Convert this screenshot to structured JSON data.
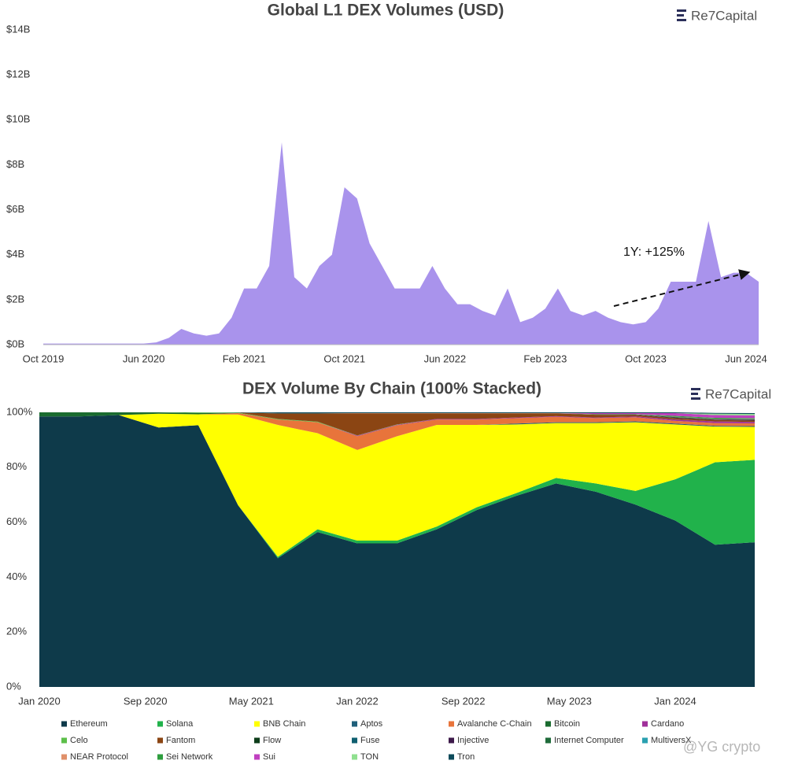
{
  "watermark": "@YG crypto",
  "chart_data": [
    {
      "type": "area",
      "title": "Global L1 DEX Volumes (USD)",
      "brand": "Re7Capital",
      "color": "#a993ec",
      "annotation": "1Y: +125%",
      "x": [
        "2019-10",
        "2019-11",
        "2019-12",
        "2020-01",
        "2020-02",
        "2020-03",
        "2020-04",
        "2020-05",
        "2020-06",
        "2020-07",
        "2020-08",
        "2020-09",
        "2020-10",
        "2020-11",
        "2020-12",
        "2021-01",
        "2021-02",
        "2021-03",
        "2021-04",
        "2021-05",
        "2021-06",
        "2021-07",
        "2021-08",
        "2021-09",
        "2021-10",
        "2021-11",
        "2021-12",
        "2022-01",
        "2022-02",
        "2022-03",
        "2022-04",
        "2022-05",
        "2022-06",
        "2022-07",
        "2022-08",
        "2022-09",
        "2022-10",
        "2022-11",
        "2022-12",
        "2023-01",
        "2023-02",
        "2023-03",
        "2023-04",
        "2023-05",
        "2023-06",
        "2023-07",
        "2023-08",
        "2023-09",
        "2023-10",
        "2023-11",
        "2023-12",
        "2024-01",
        "2024-02",
        "2024-03",
        "2024-04",
        "2024-05",
        "2024-06",
        "2024-07"
      ],
      "values": [
        0.05,
        0.05,
        0.05,
        0.05,
        0.05,
        0.05,
        0.05,
        0.05,
        0.05,
        0.1,
        0.3,
        0.7,
        0.5,
        0.4,
        0.5,
        1.2,
        2.5,
        2.5,
        3.5,
        9,
        3,
        2.5,
        3.5,
        4,
        7,
        6.5,
        4.5,
        3.5,
        2.5,
        2.5,
        2.5,
        3.5,
        2.5,
        1.8,
        1.8,
        1.5,
        1.3,
        2.5,
        1.0,
        1.2,
        1.6,
        2.5,
        1.5,
        1.3,
        1.5,
        1.2,
        1.0,
        0.9,
        1.0,
        1.6,
        2.8,
        2.8,
        2.8,
        5.5,
        3.0,
        3.2,
        3.2,
        2.8
      ],
      "xlim": [
        "2019-10",
        "2024-07"
      ],
      "xticks": [
        {
          "value": "2019-10",
          "label": "Oct 2019"
        },
        {
          "value": "2020-06",
          "label": "Jun 2020"
        },
        {
          "value": "2021-02",
          "label": "Feb 2021"
        },
        {
          "value": "2021-10",
          "label": "Oct 2021"
        },
        {
          "value": "2022-06",
          "label": "Jun 2022"
        },
        {
          "value": "2023-02",
          "label": "Feb 2023"
        },
        {
          "value": "2023-10",
          "label": "Oct 2023"
        },
        {
          "value": "2024-06",
          "label": "Jun 2024"
        }
      ],
      "ylim": [
        0,
        14
      ],
      "yticks": [
        {
          "value": 0,
          "label": "$0B"
        },
        {
          "value": 2,
          "label": "$2B"
        },
        {
          "value": 4,
          "label": "$4B"
        },
        {
          "value": 6,
          "label": "$6B"
        },
        {
          "value": 8,
          "label": "$8B"
        },
        {
          "value": 10,
          "label": "$10B"
        },
        {
          "value": 12,
          "label": "$12B"
        },
        {
          "value": 14,
          "label": "$14B"
        }
      ],
      "grid": false
    },
    {
      "type": "stacked_area",
      "title": "DEX Volume By Chain (100% Stacked)",
      "brand": "Re7Capital",
      "x": [
        "2020-01",
        "2020-04",
        "2020-07",
        "2020-10",
        "2021-01",
        "2021-04",
        "2021-07",
        "2021-10",
        "2022-01",
        "2022-04",
        "2022-07",
        "2022-10",
        "2023-01",
        "2023-04",
        "2023-07",
        "2023-10",
        "2024-01",
        "2024-04",
        "2024-07"
      ],
      "xlim": [
        "2020-01",
        "2024-07"
      ],
      "xticks": [
        {
          "value": "2020-01",
          "label": "Jan 2020"
        },
        {
          "value": "2020-09",
          "label": "Sep 2020"
        },
        {
          "value": "2021-05",
          "label": "May 2021"
        },
        {
          "value": "2022-01",
          "label": "Jan 2022"
        },
        {
          "value": "2022-09",
          "label": "Sep 2022"
        },
        {
          "value": "2023-05",
          "label": "May 2023"
        },
        {
          "value": "2024-01",
          "label": "Jan 2024"
        }
      ],
      "ylim": [
        0,
        100
      ],
      "yticks": [
        {
          "value": 0,
          "label": "0%"
        },
        {
          "value": 20,
          "label": "20%"
        },
        {
          "value": 40,
          "label": "40%"
        },
        {
          "value": 60,
          "label": "60%"
        },
        {
          "value": 80,
          "label": "80%"
        },
        {
          "value": 100,
          "label": "100%"
        }
      ],
      "grid": false,
      "series": [
        {
          "name": "Ethereum",
          "color": "#0e3a4a",
          "values": [
            98.5,
            98.5,
            99,
            94.5,
            95.3,
            66.2,
            46.9,
            56.4,
            52.3,
            52.3,
            57.4,
            64.4,
            69.6,
            74.1,
            71.1,
            66.4,
            60.6,
            51.8,
            52.7
          ]
        },
        {
          "name": "Solana",
          "color": "#21b24b",
          "values": [
            0,
            0,
            0,
            0,
            0,
            0,
            0.5,
            1,
            1,
            1,
            1,
            1,
            1,
            2,
            3,
            5,
            15,
            30,
            30
          ]
        },
        {
          "name": "BNB Chain",
          "color": "#ffff00",
          "values": [
            0,
            0,
            0,
            5,
            4,
            33,
            48,
            35,
            33,
            38,
            37,
            30,
            25,
            20,
            22,
            25,
            20,
            13,
            12
          ]
        },
        {
          "name": "Aptos",
          "color": "#1f5f7a",
          "values": [
            0,
            0,
            0,
            0,
            0,
            0,
            0,
            0,
            0,
            0,
            0,
            0,
            0.3,
            0.3,
            0.3,
            0.3,
            0.3,
            0.3,
            0.3
          ]
        },
        {
          "name": "Avalanche C-Chain",
          "color": "#e8743b",
          "values": [
            0,
            0,
            0,
            0,
            0,
            0.5,
            2,
            4,
            5,
            4,
            2,
            2,
            2,
            2,
            1.5,
            1.5,
            1,
            1,
            1
          ]
        },
        {
          "name": "Bitcoin",
          "color": "#1a6b2f",
          "values": [
            1.5,
            1.5,
            1,
            0.5,
            0.5,
            0,
            0,
            0,
            0,
            0,
            0,
            0,
            0,
            0,
            0,
            0,
            0,
            0,
            0
          ]
        },
        {
          "name": "Cardano",
          "color": "#a0309a",
          "values": [
            0,
            0,
            0,
            0,
            0,
            0,
            0,
            0,
            0.2,
            0.2,
            0.2,
            0.2,
            0.2,
            0.2,
            0.2,
            0.3,
            0.5,
            0.6,
            0.5
          ]
        },
        {
          "name": "Celo",
          "color": "#5cbf4a",
          "values": [
            0,
            0,
            0,
            0,
            0.2,
            0.2,
            0.2,
            0.2,
            0.1,
            0.1,
            0,
            0,
            0,
            0,
            0,
            0,
            0,
            0,
            0
          ]
        },
        {
          "name": "Fantom",
          "color": "#8b4513",
          "values": [
            0,
            0,
            0,
            0,
            0,
            0,
            2,
            3,
            8,
            4,
            2,
            2,
            1.5,
            1,
            1,
            0.5,
            0.5,
            0.5,
            0.5
          ]
        },
        {
          "name": "Flow",
          "color": "#0d3d1a",
          "values": [
            0,
            0,
            0,
            0,
            0,
            0,
            0,
            0,
            0,
            0,
            0,
            0,
            0,
            0,
            0,
            0,
            0,
            0,
            0
          ]
        },
        {
          "name": "Fuse",
          "color": "#0f5f70",
          "values": [
            0,
            0,
            0,
            0,
            0,
            0.1,
            0.1,
            0.1,
            0,
            0,
            0,
            0,
            0,
            0,
            0,
            0,
            0,
            0,
            0
          ]
        },
        {
          "name": "Injective",
          "color": "#3d1a4a",
          "values": [
            0,
            0,
            0,
            0,
            0,
            0,
            0,
            0,
            0,
            0,
            0,
            0,
            0,
            0,
            0,
            0.1,
            0.2,
            0.2,
            0.3
          ]
        },
        {
          "name": "Internet Computer",
          "color": "#1f6b3a",
          "values": [
            0,
            0,
            0,
            0,
            0,
            0,
            0,
            0,
            0,
            0,
            0,
            0,
            0,
            0,
            0.2,
            0.2,
            0.2,
            0.2,
            0.2
          ]
        },
        {
          "name": "MultiversX",
          "color": "#2aa0b0",
          "values": [
            0,
            0,
            0,
            0,
            0,
            0,
            0,
            0,
            0,
            0,
            0,
            0,
            0,
            0,
            0,
            0,
            0,
            0,
            0
          ]
        },
        {
          "name": "NEAR Protocol",
          "color": "#e0906a",
          "values": [
            0,
            0,
            0,
            0,
            0,
            0,
            0,
            0,
            0.1,
            0.1,
            0.1,
            0.1,
            0.1,
            0.1,
            0.1,
            0.1,
            0.1,
            0.1,
            0.1
          ]
        },
        {
          "name": "Sei Network",
          "color": "#2e9e3e",
          "values": [
            0,
            0,
            0,
            0,
            0,
            0,
            0,
            0,
            0,
            0,
            0,
            0,
            0,
            0,
            0,
            0,
            0.3,
            0.3,
            0.3
          ]
        },
        {
          "name": "Sui",
          "color": "#c040c0",
          "values": [
            0,
            0,
            0,
            0,
            0,
            0,
            0,
            0,
            0,
            0,
            0,
            0,
            0,
            0,
            0.3,
            0.3,
            1,
            1,
            1
          ]
        },
        {
          "name": "TON",
          "color": "#90e090",
          "values": [
            0,
            0,
            0,
            0,
            0,
            0,
            0,
            0,
            0,
            0,
            0,
            0,
            0,
            0,
            0,
            0,
            0,
            0.5,
            0.5
          ]
        },
        {
          "name": "Tron",
          "color": "#0d4a5a",
          "values": [
            0,
            0,
            0,
            0,
            0,
            0,
            0.3,
            0.3,
            0.3,
            0.3,
            0.3,
            0.3,
            0.3,
            0.3,
            0.3,
            0.3,
            0.3,
            0.3,
            0.3
          ]
        }
      ]
    }
  ]
}
